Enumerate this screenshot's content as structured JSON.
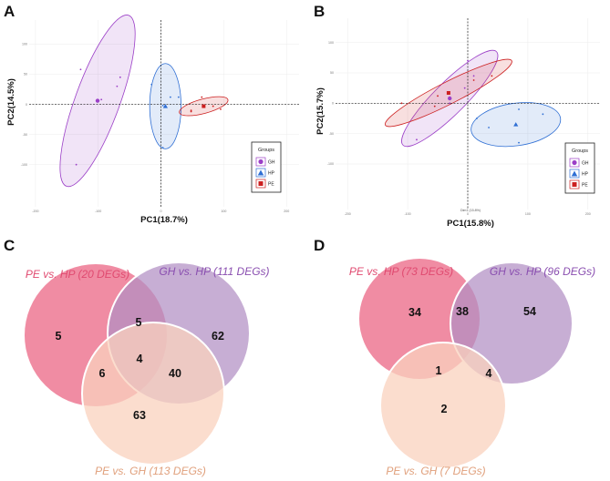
{
  "figure": {
    "panels": [
      {
        "letter": "A"
      },
      {
        "letter": "B"
      },
      {
        "letter": "C"
      },
      {
        "letter": "D"
      }
    ]
  },
  "colors": {
    "GH": "#9b3fc7",
    "HP": "#2f6fd4",
    "PE": "#cc1f1f",
    "venn_pe_hp": "#ec6f8c",
    "venn_gh_hp": "#b18fc4",
    "venn_pe_gh": "#f9d2be"
  },
  "chart_data": [
    {
      "type": "scatter",
      "panel": "A",
      "xlabel": "PC1(18.7%)",
      "ylabel": "PC2(14.5%)",
      "xlim": [
        -210,
        220
      ],
      "ylim": [
        -170,
        140
      ],
      "x_ticks": [
        -200,
        -100,
        0,
        100,
        200
      ],
      "y_ticks": [
        -100,
        -50,
        0,
        50,
        100
      ],
      "tick_labels_x": [
        "-200",
        "-100",
        "0",
        "100",
        "200"
      ],
      "tick_labels_y": [
        "-100",
        "-50",
        "0",
        "50",
        "100"
      ],
      "legend": {
        "title": "Groups",
        "position": "bottom-right",
        "entries": [
          "GH",
          "HP",
          "PE"
        ]
      },
      "series": [
        {
          "name": "GH",
          "marker": "circle",
          "points": [
            [
              -128,
              58
            ],
            [
              -65,
              45
            ],
            [
              -70,
              30
            ],
            [
              -95,
              8
            ],
            [
              -135,
              -100
            ]
          ],
          "centroid": [
            -101,
            6
          ],
          "ellipse": {
            "cx": -101,
            "cy": 6,
            "rx": 145,
            "ry": 37,
            "angle": 70
          }
        },
        {
          "name": "HP",
          "marker": "triangle",
          "points": [
            [
              -15,
              33
            ],
            [
              15,
              12
            ],
            [
              28,
              12
            ],
            [
              3,
              -2
            ],
            [
              3,
              -72
            ]
          ],
          "centroid": [
            7,
            -3
          ],
          "ellipse": {
            "cx": 7,
            "cy": -3,
            "rx": 68,
            "ry": 26,
            "angle": 90
          }
        },
        {
          "name": "PE",
          "marker": "square",
          "points": [
            [
              65,
              12
            ],
            [
              48,
              -10
            ],
            [
              95,
              -8
            ],
            [
              83,
              -3
            ],
            [
              48,
              -12
            ]
          ],
          "centroid": [
            68,
            -3
          ],
          "ellipse": {
            "cx": 68,
            "cy": -3,
            "rx": 40,
            "ry": 12,
            "angle": 15
          }
        }
      ]
    },
    {
      "type": "scatter",
      "panel": "B",
      "xlabel": "PC1(15.8%)",
      "ylabel": "PC2(15.7%)",
      "axis_note": "Dim1 (15.8%)",
      "xlim": [
        -220,
        220
      ],
      "ylim": [
        -175,
        140
      ],
      "x_ticks": [
        -200,
        -100,
        0,
        100,
        200
      ],
      "y_ticks": [
        -100,
        -50,
        0,
        50,
        100
      ],
      "tick_labels_x": [
        "-200",
        "-100",
        "0",
        "100",
        "200"
      ],
      "tick_labels_y": [
        "-100",
        "-50",
        "0",
        "50",
        "100"
      ],
      "legend": {
        "title": "Groups",
        "position": "bottom-right",
        "entries": [
          "GH",
          "HP",
          "PE"
        ]
      },
      "series": [
        {
          "name": "GH",
          "marker": "circle",
          "points": [
            [
              0,
              70
            ],
            [
              10,
              45
            ],
            [
              -5,
              25
            ],
            [
              -30,
              0
            ],
            [
              -85,
              -60
            ]
          ],
          "centroid": [
            -30,
            8
          ],
          "ellipse": {
            "cx": -30,
            "cy": 8,
            "rx": 110,
            "ry": 26,
            "angle": 45
          }
        },
        {
          "name": "HP",
          "marker": "triangle",
          "points": [
            [
              85,
              -10
            ],
            [
              125,
              -18
            ],
            [
              35,
              -40
            ],
            [
              85,
              -65
            ],
            [
              15,
              -25
            ]
          ],
          "centroid": [
            80,
            -35
          ],
          "ellipse": {
            "cx": 80,
            "cy": -35,
            "rx": 75,
            "ry": 35,
            "angle": 8
          }
        },
        {
          "name": "PE",
          "marker": "square",
          "points": [
            [
              -110,
              0
            ],
            [
              -55,
              -5
            ],
            [
              10,
              38
            ],
            [
              40,
              45
            ],
            [
              -50,
              12
            ]
          ],
          "centroid": [
            -32,
            17
          ],
          "ellipse": {
            "cx": -32,
            "cy": 17,
            "rx": 118,
            "ry": 18,
            "angle": 27
          }
        }
      ]
    },
    {
      "type": "venn",
      "panel": "C",
      "sets": [
        {
          "label": "PE vs. HP (20 DEGs)",
          "color": "#ec6f8c"
        },
        {
          "label": "GH vs. HP (111 DEGs)",
          "color": "#b18fc4"
        },
        {
          "label": "PE vs. GH (113 DEGs)",
          "color": "#f9d2be"
        }
      ],
      "regions": [
        {
          "sets": [
            "PE vs. HP"
          ],
          "value": 5
        },
        {
          "sets": [
            "PE vs. HP",
            "GH vs. HP"
          ],
          "value": 5
        },
        {
          "sets": [
            "GH vs. HP"
          ],
          "value": 62
        },
        {
          "sets": [
            "PE vs. HP",
            "PE vs. GH"
          ],
          "value": 6
        },
        {
          "sets": [
            "PE vs. HP",
            "GH vs. HP",
            "PE vs. GH"
          ],
          "value": 4
        },
        {
          "sets": [
            "GH vs. HP",
            "PE vs. GH"
          ],
          "value": 40
        },
        {
          "sets": [
            "PE vs. GH"
          ],
          "value": 63
        }
      ]
    },
    {
      "type": "venn",
      "panel": "D",
      "sets": [
        {
          "label": "PE vs. HP (73 DEGs)",
          "color": "#ec6f8c"
        },
        {
          "label": "GH vs. HP (96 DEGs)",
          "color": "#b18fc4"
        },
        {
          "label": "PE vs. GH (7 DEGs)",
          "color": "#f9d2be"
        }
      ],
      "regions": [
        {
          "sets": [
            "PE vs. HP"
          ],
          "value": 34
        },
        {
          "sets": [
            "PE vs. HP",
            "GH vs. HP"
          ],
          "value": 38
        },
        {
          "sets": [
            "GH vs. HP"
          ],
          "value": 54
        },
        {
          "sets": [
            "PE vs. HP",
            "PE vs. GH"
          ],
          "value": 1
        },
        {
          "sets": [
            "GH vs. HP",
            "PE vs. GH"
          ],
          "value": 4
        },
        {
          "sets": [
            "PE vs. GH"
          ],
          "value": 2
        }
      ]
    }
  ]
}
